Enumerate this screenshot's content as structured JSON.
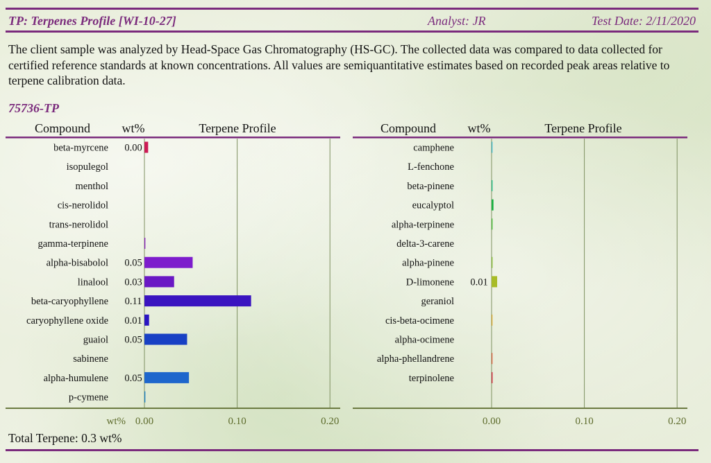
{
  "header": {
    "title": "TP: Terpenes Profile [WI-10-27]",
    "analyst": "Analyst: JR",
    "test_date": "Test Date: 2/11/2020"
  },
  "description": "The client sample was analyzed by Head-Space Gas Chromatography (HS-GC).  The collected data was compared to data collected for certified reference standards at known concentrations.  All values are semiquantitative estimates based on recorded peak areas relative to terpene calibration data.",
  "sample_id": "75736-TP",
  "total_terpene": "Total Terpene: 0.3 wt%",
  "chart_data": [
    {
      "type": "bar",
      "orientation": "horizontal",
      "title": "Terpene Profile",
      "column_headers": {
        "compound": "Compound",
        "wt": "wt%",
        "profile": "Terpene Profile"
      },
      "axis_unit_label": "wt%",
      "xlim": [
        0,
        0.2
      ],
      "ticks": [
        0,
        0.1,
        0.2
      ],
      "tick_labels": [
        "0.00",
        "0.10",
        "0.20"
      ],
      "grid": true,
      "rows": [
        {
          "compound": "beta-myrcene",
          "value": 0.004,
          "label": "0.00",
          "color": "#cc1a55"
        },
        {
          "compound": "isopulegol",
          "value": 0,
          "label": "",
          "color": "#c02080"
        },
        {
          "compound": "menthol",
          "value": 0,
          "label": "",
          "color": "#b02590"
        },
        {
          "compound": "cis-nerolidol",
          "value": 0,
          "label": "",
          "color": "#a025a5"
        },
        {
          "compound": "trans-nerolidol",
          "value": 0,
          "label": "",
          "color": "#9520b0"
        },
        {
          "compound": "gamma-terpinene",
          "value": 0.001,
          "label": "",
          "color": "#8a20c0"
        },
        {
          "compound": "alpha-bisabolol",
          "value": 0.052,
          "label": "0.05",
          "color": "#7d1ccc"
        },
        {
          "compound": "linalool",
          "value": 0.032,
          "label": "0.03",
          "color": "#6a18c4"
        },
        {
          "compound": "beta-caryophyllene",
          "value": 0.115,
          "label": "0.11",
          "color": "#3a14c0"
        },
        {
          "compound": "caryophyllene oxide",
          "value": 0.005,
          "label": "0.01",
          "color": "#2a16c2"
        },
        {
          "compound": "guaiol",
          "value": 0.046,
          "label": "0.05",
          "color": "#1840c4"
        },
        {
          "compound": "sabinene",
          "value": 0,
          "label": "",
          "color": "#1a55c8"
        },
        {
          "compound": "alpha-humulene",
          "value": 0.048,
          "label": "0.05",
          "color": "#1e66cc"
        },
        {
          "compound": "p-cymene",
          "value": 0.001,
          "label": "",
          "color": "#1a80c8"
        }
      ]
    },
    {
      "type": "bar",
      "orientation": "horizontal",
      "title": "Terpene Profile",
      "column_headers": {
        "compound": "Compound",
        "wt": "wt%",
        "profile": "Terpene Profile"
      },
      "axis_unit_label": "",
      "xlim": [
        0,
        0.2
      ],
      "ticks": [
        0,
        0.1,
        0.2
      ],
      "tick_labels": [
        "0.00",
        "0.10",
        "0.20"
      ],
      "grid": true,
      "rows": [
        {
          "compound": "camphene",
          "value": 0.0005,
          "label": "",
          "color": "#2ab0c8"
        },
        {
          "compound": "L-fenchone",
          "value": 0,
          "label": "",
          "color": "#20b8b0"
        },
        {
          "compound": "beta-pinene",
          "value": 0.001,
          "label": "",
          "color": "#18b880"
        },
        {
          "compound": "eucalyptol",
          "value": 0.002,
          "label": "",
          "color": "#18b040"
        },
        {
          "compound": "alpha-terpinene",
          "value": 0.001,
          "label": "",
          "color": "#40b830"
        },
        {
          "compound": "delta-3-carene",
          "value": 0,
          "label": "",
          "color": "#60b830"
        },
        {
          "compound": "alpha-pinene",
          "value": 0.001,
          "label": "",
          "color": "#80b830"
        },
        {
          "compound": "D-limonene",
          "value": 0.006,
          "label": "0.01",
          "color": "#a8bc28"
        },
        {
          "compound": "geraniol",
          "value": 0,
          "label": "",
          "color": "#c8b820"
        },
        {
          "compound": "cis-beta-ocimene",
          "value": 0.0005,
          "label": "",
          "color": "#d8a020"
        },
        {
          "compound": "alpha-ocimene",
          "value": 0,
          "label": "",
          "color": "#d88020"
        },
        {
          "compound": "alpha-phellandrene",
          "value": 0.0005,
          "label": "",
          "color": "#d85030"
        },
        {
          "compound": "terpinolene",
          "value": 0.001,
          "label": "",
          "color": "#cc1a30"
        }
      ]
    }
  ]
}
